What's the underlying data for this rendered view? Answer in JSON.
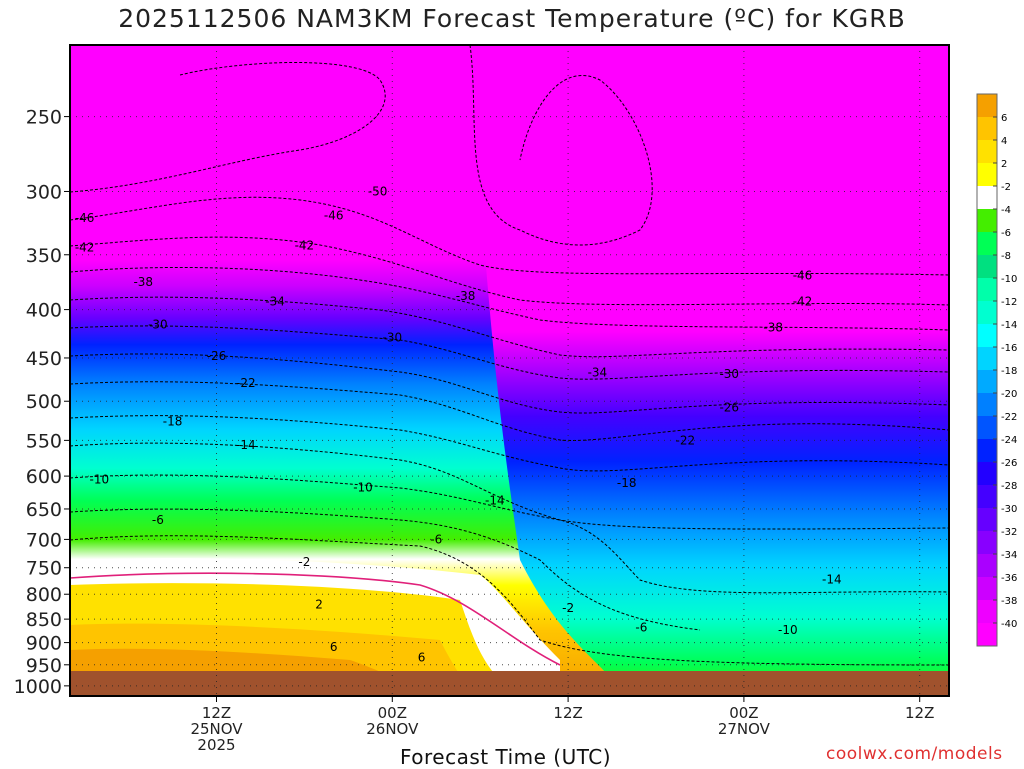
{
  "title": "2025112506 NAM3KM Forecast Temperature (ºC) for KGRB",
  "xlabel": "Forecast Time (UTC)",
  "credit": "coolwx.com/models",
  "colors": {
    "background": "#ffffff",
    "ground": "#a0522d",
    "freezing_line": "#e0207a"
  },
  "chart_data": {
    "type": "heatmap",
    "y_axis": {
      "label": "",
      "unit": "hPa",
      "scale": "log",
      "inverted": true,
      "range": [
        210,
        1025
      ],
      "ticks": [
        250,
        300,
        350,
        400,
        450,
        500,
        550,
        600,
        650,
        700,
        750,
        800,
        850,
        900,
        950,
        1000
      ]
    },
    "x_axis": {
      "range_hours": [
        -4,
        56
      ],
      "tick_hours": [
        6,
        18,
        30,
        42,
        54
      ],
      "tick_labels": [
        [
          "12Z",
          "25NOV",
          "2025"
        ],
        [
          "00Z",
          "26NOV"
        ],
        [
          "12Z"
        ],
        [
          "00Z",
          "27NOV"
        ],
        [
          "12Z"
        ]
      ]
    },
    "grid": true,
    "colorbar": {
      "labels": [
        "6",
        "4",
        "2",
        "-2",
        "-4",
        "-6",
        "-8",
        "-10",
        "-12",
        "-14",
        "-16",
        "-18",
        "-20",
        "-22",
        "-24",
        "-26",
        "-28",
        "-30",
        "-32",
        "-34",
        "-36",
        "-38",
        "-40"
      ],
      "colors": [
        "#f5a000",
        "#ffc400",
        "#ffe100",
        "#ffff00",
        "#ffffff",
        "#44ee00",
        "#00ff55",
        "#00e080",
        "#00ffaa",
        "#00ffd0",
        "#00ffff",
        "#00d4ff",
        "#00aaff",
        "#0080ff",
        "#0055ff",
        "#0022ff",
        "#2200ff",
        "#4400ff",
        "#6600ff",
        "#8800ff",
        "#aa00ff",
        "#cc00ff",
        "#ee00ff",
        "#ff00ff"
      ]
    },
    "isotherms": [
      {
        "value": -50,
        "label": "-50",
        "label_at": [
          17,
          300
        ]
      },
      {
        "value": -46,
        "label": "-46",
        "label_at": [
          -3,
          320
        ]
      },
      {
        "value": -46,
        "label": "-46",
        "label_at": [
          14,
          318
        ]
      },
      {
        "value": -46,
        "label": "-46",
        "label_at": [
          46,
          368
        ]
      },
      {
        "value": -42,
        "label": "-42",
        "label_at": [
          -3,
          344
        ]
      },
      {
        "value": -42,
        "label": "-42",
        "label_at": [
          12,
          342
        ]
      },
      {
        "value": -42,
        "label": "-42",
        "label_at": [
          46,
          392
        ]
      },
      {
        "value": -38,
        "label": "-38",
        "label_at": [
          1,
          374
        ]
      },
      {
        "value": -38,
        "label": "-38",
        "label_at": [
          23,
          387
        ]
      },
      {
        "value": -38,
        "label": "-38",
        "label_at": [
          44,
          418
        ]
      },
      {
        "value": -34,
        "label": "-34",
        "label_at": [
          10,
          392
        ]
      },
      {
        "value": -34,
        "label": "-34",
        "label_at": [
          32,
          466
        ]
      },
      {
        "value": -30,
        "label": "-30",
        "label_at": [
          2,
          415
        ]
      },
      {
        "value": -30,
        "label": "-30",
        "label_at": [
          18,
          428
        ]
      },
      {
        "value": -30,
        "label": "-30",
        "label_at": [
          41,
          468
        ]
      },
      {
        "value": -26,
        "label": "-26",
        "label_at": [
          6,
          448
        ]
      },
      {
        "value": -26,
        "label": "-26",
        "label_at": [
          41,
          508
        ]
      },
      {
        "value": -22,
        "label": "-22",
        "label_at": [
          8,
          478
        ]
      },
      {
        "value": -22,
        "label": "-22",
        "label_at": [
          38,
          550
        ]
      },
      {
        "value": -18,
        "label": "-18",
        "label_at": [
          3,
          525
        ]
      },
      {
        "value": -18,
        "label": "-18",
        "label_at": [
          34,
          610
        ]
      },
      {
        "value": -14,
        "label": "-14",
        "label_at": [
          8,
          556
        ]
      },
      {
        "value": -14,
        "label": "-14",
        "label_at": [
          25,
          637
        ]
      },
      {
        "value": -14,
        "label": "-14",
        "label_at": [
          48,
          772
        ]
      },
      {
        "value": -10,
        "label": "-10",
        "label_at": [
          -2,
          605
        ]
      },
      {
        "value": -10,
        "label": "-10",
        "label_at": [
          16,
          617
        ]
      },
      {
        "value": -10,
        "label": "-10",
        "label_at": [
          45,
          873
        ]
      },
      {
        "value": -6,
        "label": "-6",
        "label_at": [
          2,
          668
        ]
      },
      {
        "value": -6,
        "label": "-6",
        "label_at": [
          21,
          700
        ]
      },
      {
        "value": -6,
        "label": "-6",
        "label_at": [
          35,
          868
        ]
      },
      {
        "value": -2,
        "label": "-2",
        "label_at": [
          12,
          740
        ]
      },
      {
        "value": -2,
        "label": "-2",
        "label_at": [
          30,
          827
        ]
      },
      {
        "value": 2,
        "label": "2",
        "label_at": [
          13,
          820
        ]
      },
      {
        "value": 6,
        "label": "6",
        "label_at": [
          14,
          910
        ]
      },
      {
        "value": 6,
        "label": "6",
        "label_at": [
          20,
          933
        ]
      }
    ]
  }
}
